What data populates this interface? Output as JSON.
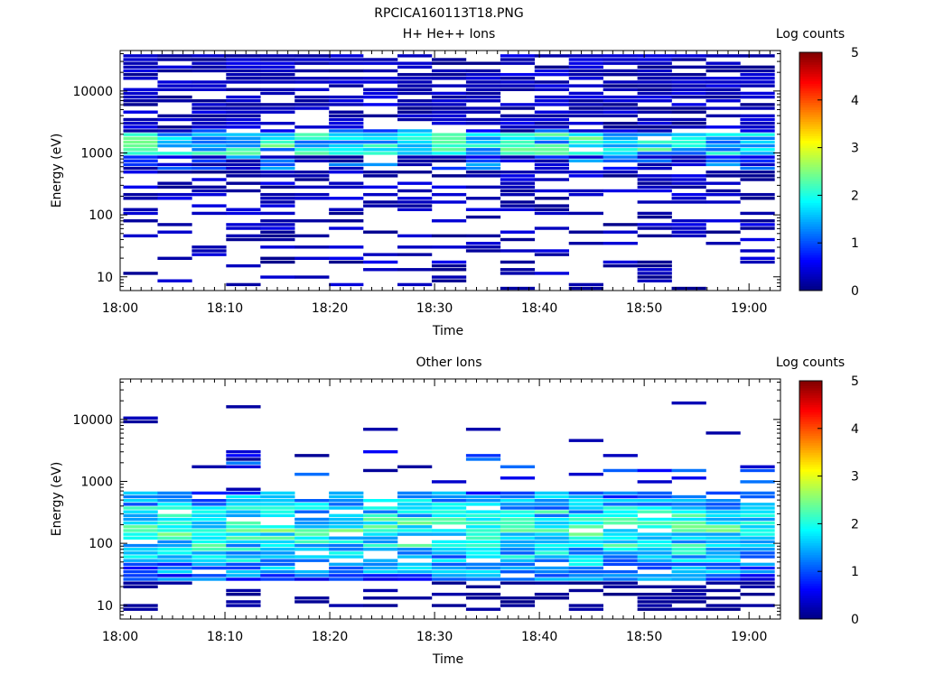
{
  "figure_title": "RPCICA160113T18.PNG",
  "colors": {
    "axis": "#000000",
    "colormap": [
      "#00007f",
      "#0000ff",
      "#007fff",
      "#00ffff",
      "#7fff7f",
      "#ffff00",
      "#ff7f00",
      "#ff0000",
      "#7f0000"
    ]
  },
  "chart_data": [
    {
      "type": "heatmap",
      "title": "H+ He++ Ions",
      "xlabel": "Time",
      "ylabel": "Energy (eV)",
      "xticks": [
        "18:00",
        "18:10",
        "18:20",
        "18:30",
        "18:40",
        "18:50",
        "19:00"
      ],
      "xlim_min": [
        0,
        63
      ],
      "yscale": "log",
      "ylim": [
        6,
        45000
      ],
      "yticks": [
        "10",
        "100",
        "1000",
        "10000"
      ],
      "colorbar": {
        "label": "Log counts",
        "range": [
          0,
          5
        ],
        "ticks": [
          "0",
          "1",
          "2",
          "3",
          "4",
          "5"
        ]
      },
      "time_bins": 19,
      "note": "Dense coverage 10–40000 eV; peak ~2.6 log counts near 1400 eV"
    },
    {
      "type": "heatmap",
      "title": "Other Ions",
      "xlabel": "Time",
      "ylabel": "Energy (eV)",
      "xticks": [
        "18:00",
        "18:10",
        "18:20",
        "18:30",
        "18:40",
        "18:50",
        "19:00"
      ],
      "xlim_min": [
        0,
        63
      ],
      "yscale": "log",
      "ylim": [
        6,
        45000
      ],
      "yticks": [
        "10",
        "100",
        "1000",
        "10000"
      ],
      "colorbar": {
        "label": "Log counts",
        "range": [
          0,
          5
        ],
        "ticks": [
          "0",
          "1",
          "2",
          "3",
          "4",
          "5"
        ]
      },
      "time_bins": 19,
      "note": "Main band 25–700 eV; peak ~2.8 log counts near 200–300 eV"
    }
  ]
}
